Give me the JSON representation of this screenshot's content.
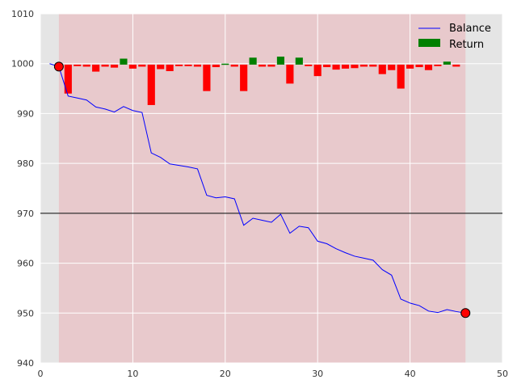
{
  "chart_data": {
    "type": "line",
    "title": "",
    "xlabel": "",
    "ylabel": "",
    "xlim": [
      0,
      50
    ],
    "ylim": [
      940,
      1010
    ],
    "xticks": [
      0,
      10,
      20,
      30,
      40,
      50
    ],
    "yticks": [
      940,
      950,
      960,
      970,
      980,
      990,
      1000,
      1010
    ],
    "grid": true,
    "legend_position": "top-right",
    "shaded_range": {
      "x_start": 2,
      "x_end": 46,
      "color": "#e8c9cc"
    },
    "reference_line": {
      "y": 970,
      "color": "#000000"
    },
    "series": [
      {
        "name": "Balance",
        "type": "line",
        "color": "#0000ff",
        "x": [
          1,
          2,
          3,
          4,
          5,
          6,
          7,
          8,
          9,
          10,
          11,
          12,
          13,
          14,
          15,
          16,
          17,
          18,
          19,
          20,
          21,
          22,
          23,
          24,
          25,
          26,
          27,
          28,
          29,
          30,
          31,
          32,
          33,
          34,
          35,
          36,
          37,
          38,
          39,
          40,
          41,
          42,
          43,
          44,
          45,
          46
        ],
        "y": [
          1000,
          999.4,
          993.5,
          993.1,
          992.7,
          991.3,
          990.9,
          990.3,
          991.4,
          990.6,
          990.2,
          982.1,
          981.2,
          979.9,
          979.6,
          979.3,
          978.9,
          973.6,
          973.1,
          973.3,
          972.9,
          967.6,
          969.0,
          968.6,
          968.2,
          969.8,
          966.0,
          967.4,
          967.1,
          964.4,
          963.9,
          962.9,
          962.1,
          961.4,
          961.0,
          960.6,
          958.7,
          957.6,
          952.8,
          952.0,
          951.5,
          950.4,
          950.1,
          950.7,
          950.3,
          950.0
        ]
      },
      {
        "name": "Return",
        "type": "bar",
        "baseline": 999.8,
        "positive_color": "#008000",
        "negative_color": "#ff0000",
        "x": [
          3,
          4,
          5,
          6,
          7,
          8,
          9,
          10,
          11,
          12,
          13,
          14,
          15,
          16,
          17,
          18,
          19,
          20,
          21,
          22,
          23,
          24,
          25,
          26,
          27,
          28,
          29,
          30,
          31,
          32,
          33,
          34,
          35,
          36,
          37,
          38,
          39,
          40,
          41,
          42,
          43,
          44,
          45
        ],
        "y": [
          -5.8,
          -0.3,
          -0.4,
          -1.4,
          -0.4,
          -0.6,
          1.2,
          -0.8,
          -0.4,
          -8.1,
          -0.9,
          -1.3,
          -0.3,
          -0.3,
          -0.4,
          -5.3,
          -0.5,
          0.2,
          -0.4,
          -5.3,
          1.4,
          -0.4,
          -0.4,
          1.6,
          -3.8,
          1.4,
          -0.3,
          -2.3,
          -0.5,
          -1.0,
          -0.8,
          -0.7,
          -0.4,
          -0.4,
          -1.9,
          -1.1,
          -4.8,
          -0.8,
          -0.5,
          -1.1,
          -0.3,
          0.6,
          -0.4
        ]
      }
    ],
    "markers": [
      {
        "x": 2,
        "y": 999.4,
        "color": "#ff0000"
      },
      {
        "x": 46,
        "y": 950.0,
        "color": "#ff0000"
      }
    ]
  },
  "colors": {
    "plot_background": "#e5e5e5",
    "grid": "#ffffff"
  }
}
